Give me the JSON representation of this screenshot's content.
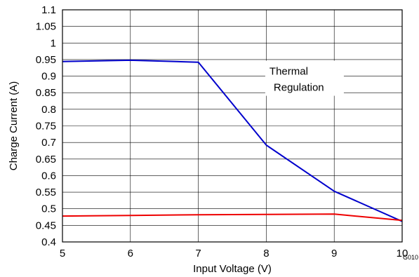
{
  "chart_data": {
    "type": "line",
    "xlabel": "Input Voltage (V)",
    "ylabel": "Charge Current (A)",
    "xlim": [
      5,
      10
    ],
    "ylim": [
      0.4,
      1.1
    ],
    "x_ticks": [
      "5",
      "6",
      "7",
      "8",
      "9",
      "10"
    ],
    "y_ticks": [
      "0.4",
      "0.45",
      "0.5",
      "0.55",
      "0.6",
      "0.65",
      "0.7",
      "0.75",
      "0.8",
      "0.85",
      "0.9",
      "0.95",
      "1",
      "1.05",
      "1.1"
    ],
    "grid": true,
    "series": [
      {
        "color": "#0000cc",
        "x": [
          5,
          6,
          7,
          8,
          9,
          10
        ],
        "y": [
          0.944,
          0.948,
          0.942,
          0.692,
          0.553,
          0.462
        ]
      },
      {
        "color": "#ee0000",
        "x": [
          5,
          6,
          7,
          8,
          9,
          10
        ],
        "y": [
          0.478,
          0.48,
          0.482,
          0.483,
          0.484,
          0.465
        ]
      }
    ],
    "annotation": {
      "line1": "Thermal",
      "line2": "Regulation",
      "x": 8.15,
      "y": 0.9
    },
    "code_label": "G010"
  }
}
